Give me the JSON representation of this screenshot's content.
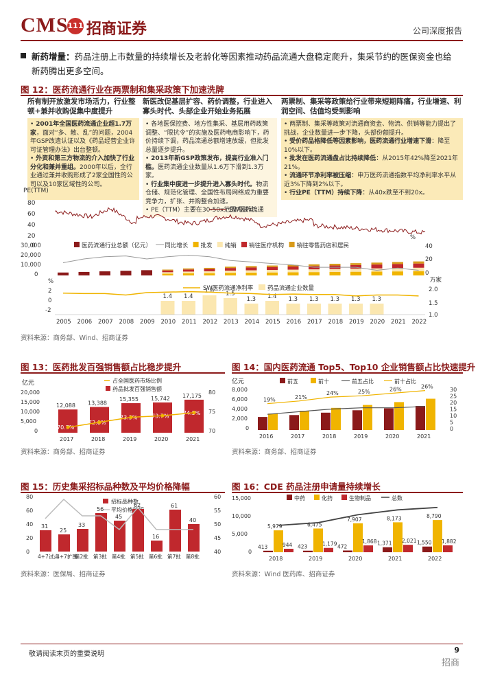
{
  "header": {
    "logo_text": "CMS",
    "logo_badge": "111",
    "logo_cn": "招商证券",
    "report_type": "公司深度报告"
  },
  "intro": {
    "bold": "新药增量：",
    "text": "药品注册上市数量的持续增长及老龄化等因素推动药品流通大盘稳定爬升，集采节约的医保资金也给新药腾出更多空间。"
  },
  "fig12": {
    "title": "图 12：医药流通行业在两票制和集采政策下加速洗牌",
    "col1": {
      "title": "所有制开放激发市场活力，行业整顿+兼并收购促集中度提升",
      "p1b": "2001年全国医药流通企业超1.7万家",
      "p1": "，面对“多、散、乱”的问题，2004年GSP改造认证以及《药品经营企业许可证管理办法》出台整顿。",
      "p2b": "外资和第三方物流的介入加快了行业分化和兼并重组。",
      "p2": "2000年以后，全行业通过兼并收购形成了2家全国性的公司以及10家区域性的公司。"
    },
    "col2": {
      "title": "新医改促基层扩容、药价调整，行业进入寡头时代、头部企业开始业务拓展",
      "p1": "各地医保控费、地方性集采、基层用药政策调整、“限抗令”的实施及医药电商影响下，药价持续下调，药品流通总额增速放缓，但批发总量逐步提升。",
      "p2b": "2013年新GSP政策发布，提高行业准入门槛。",
      "p2": "医药流通企业数量从1.6万下滑到1.3万家。",
      "p3b": "行业集中度进一步提升进入寡头时代。",
      "p3": "物流仓储、规范化管理、全国性布局网络成为重要竞争力，扩张、并购整合加速。",
      "p4": "PE（TTM）主要在30-50x范围内波动。"
    },
    "col3": {
      "title": "两票制、集采等政策给行业带来短期阵痛，行业增速、利润空间、估值均受到影响",
      "p1": "两票制、集采等政策对流通商资金、物流、供销等能力提出了挑战，企业数量进一步下降，头部份额提升。",
      "p2b": "受价药品格降低等因素影响，医药流通行业增速下滑",
      "p2": "：降至10%以下。",
      "p3b": "批发在医药流通盘占比持续降低",
      "p3": "：从2015年42%降至2021年21%。",
      "p4b": "流通环节净利率被压缩",
      "p4": "：申万医药流通指数平均净利率水平从近3%下降到2%以下。",
      "p5b": "行业PE（TTM）持续下降",
      "p5": "：从40x跌至不到20x。"
    },
    "pe_label": "PE(TTM)",
    "pe_legend": "SW医药流通",
    "bar_legend": [
      "医药流通行业总额（亿元）",
      "同比增长",
      "批发",
      "纯销",
      "销往医疗机构",
      "销往零售药店和居民"
    ],
    "pct_unit": "%",
    "margin_legend": [
      "SW医药流通净利率",
      "药品流通企业数量"
    ],
    "wan_unit": "万家",
    "years": [
      "2005",
      "2006",
      "2007",
      "2008",
      "2009",
      "2010",
      "2011",
      "2012",
      "2013",
      "2014",
      "2015",
      "2016",
      "2017",
      "2018",
      "2019",
      "2020",
      "2021",
      "2022"
    ],
    "company_counts": [
      "1.4",
      "1.4",
      "1.6",
      "1.5",
      "1.3",
      "1.4",
      "1.3",
      "1.3",
      "1.3",
      "1.3",
      "1.3"
    ],
    "source": "资料来源：商务部、Wind、招商证券"
  },
  "fig13": {
    "title": "图 13：医药批发百强销售额占比稳步提升",
    "unit": "亿元",
    "legend": [
      "占全国医药市场比例",
      "药品批发百强销售额"
    ],
    "chart_data": {
      "type": "bar",
      "categories": [
        "2017",
        "2018",
        "2019",
        "2020",
        "2021"
      ],
      "values": [
        12088,
        13388,
        15355,
        15742,
        17175
      ],
      "value_labels": [
        "12,088",
        "13,388",
        "15,355",
        "15,742",
        "17,175"
      ],
      "line": [
        70.7,
        72.0,
        73.3,
        73.7,
        74.5
      ],
      "line_labels": [
        "70.7%",
        "72.0%",
        "73.3%",
        "73.7%",
        "74.5%"
      ],
      "yticks": [
        "20,000",
        "15,000",
        "10,000",
        "5,000",
        "0"
      ],
      "y2ticks": [
        "80",
        "75",
        "70"
      ]
    },
    "source": "资料来源：商务部、招商证券"
  },
  "fig14": {
    "title": "图 14：国内医药流通 Top5、Top10 企业销售额占比快速提升",
    "unit": "亿元",
    "legend": [
      "前五",
      "前十",
      "前五占比",
      "前十占比"
    ],
    "chart_data": {
      "type": "bar",
      "categories": [
        "2016",
        "2017",
        "2018",
        "2019",
        "2020",
        "2021"
      ],
      "yticks": [
        "8,000",
        "6,000",
        "4,000",
        "2,000",
        "0"
      ],
      "y2ticks": [
        "30",
        "25",
        "20",
        "15",
        "10",
        "5",
        "0"
      ],
      "labels10": [
        "19%",
        "21%",
        "24%",
        "25%",
        "26%",
        "26%"
      ]
    },
    "source": "资料来源：商务部、招商证券"
  },
  "fig15": {
    "title": "图 15：历史集采招标品种数及平均价格降幅",
    "legend": [
      "招标品种数",
      "平均价格降幅"
    ],
    "chart_data": {
      "type": "bar",
      "categories": [
        "4+7试点",
        "4+7扩围",
        "第2批",
        "第3批",
        "第4批",
        "第5批",
        "第6批",
        "第7批",
        "第8批"
      ],
      "values": [
        31,
        25,
        33,
        56,
        45,
        62,
        16,
        61,
        40
      ],
      "value_labels": [
        "31",
        "25",
        "33",
        "56",
        "45",
        "62",
        "16",
        "61",
        "40"
      ],
      "yticks": [
        "80",
        "60",
        "40",
        "20",
        "0"
      ],
      "y2ticks": [
        "60",
        "55",
        "50",
        "45",
        "40"
      ]
    },
    "source": "资料来源：医保局、招商证券"
  },
  "fig16": {
    "title": "图 16：CDE 药品注册申请量持续增长",
    "legend": [
      "中药",
      "化药",
      "生物制品",
      "总数"
    ],
    "chart_data": {
      "type": "bar",
      "categories": [
        "2018",
        "2019",
        "2020",
        "2021",
        "2022"
      ],
      "tcm": [
        413,
        423,
        472,
        1371,
        1550
      ],
      "chem": [
        5979,
        6475,
        7907,
        8173,
        8790
      ],
      "bio": [
        944,
        1179,
        1868,
        2021,
        1882
      ],
      "tcm_labels": [
        "413",
        "423",
        "472",
        "1,371",
        "1,550"
      ],
      "chem_labels": [
        "5,979",
        "6,475",
        "7,907",
        "8,173",
        "8,790"
      ],
      "bio_labels": [
        "944",
        "1,179",
        "1,868",
        "2,021",
        "1,882"
      ],
      "yticks": [
        "15,000",
        "10,000",
        "5,000",
        "0"
      ]
    },
    "source": "资料来源：Wind 医药库、招商证券"
  },
  "footer": {
    "text": "敬请阅读末页的重要说明",
    "page": "9",
    "watermark": "招商"
  }
}
